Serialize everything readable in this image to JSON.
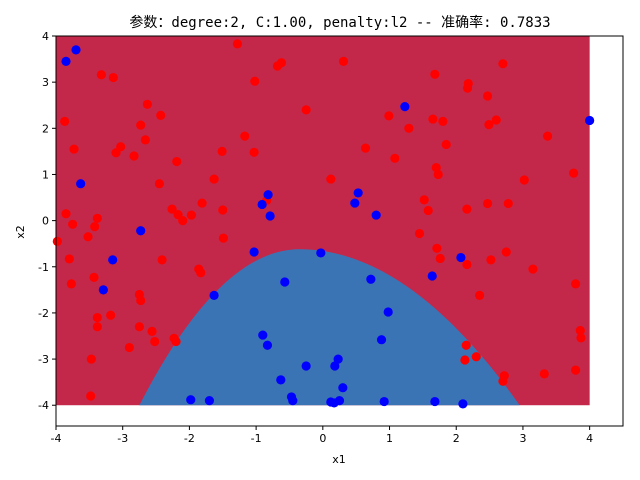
{
  "chart_data": {
    "type": "scatter",
    "title": "参数：degree:2, C:1.00, penalty:l2 -- 准确率: 0.7833",
    "xlabel": "x1",
    "ylabel": "x2",
    "xlim": [
      -4,
      4.5
    ],
    "ylim": [
      -4.45,
      4
    ],
    "xticks": [
      -4,
      -3,
      -2,
      -1,
      0,
      1,
      2,
      3,
      4
    ],
    "yticks": [
      -4,
      -3,
      -2,
      -1,
      0,
      1,
      2,
      3,
      4
    ],
    "grid": false,
    "colors": {
      "region_red": "#c3284a",
      "region_blue": "#3b74b4",
      "point_red": "#ff0000",
      "point_blue": "#0000ff"
    },
    "decision_region": {
      "x_range": [
        -4,
        4
      ],
      "y_range": [
        -4,
        4
      ],
      "boundary_peak": [
        -0.35,
        -0.62
      ],
      "boundary_ends": [
        [
          -2.75,
          -4
        ],
        [
          2.95,
          -4
        ]
      ]
    },
    "series": [
      {
        "color": "#ff0000",
        "points": [
          [
            -3.87,
            2.15
          ],
          [
            -3.73,
            1.55
          ],
          [
            -3.32,
            3.16
          ],
          [
            -3.14,
            3.1
          ],
          [
            -3.03,
            1.6
          ],
          [
            -3.1,
            1.47
          ],
          [
            -2.83,
            1.4
          ],
          [
            -2.73,
            2.07
          ],
          [
            -2.66,
            1.75
          ],
          [
            -2.63,
            2.52
          ],
          [
            -2.43,
            2.28
          ],
          [
            -2.26,
            0.25
          ],
          [
            -2.19,
            1.28
          ],
          [
            -2.17,
            0.13
          ],
          [
            -2.1,
            0.0
          ],
          [
            -1.97,
            0.12
          ],
          [
            -1.81,
            0.38
          ],
          [
            -1.63,
            0.9
          ],
          [
            -1.51,
            1.5
          ],
          [
            -1.5,
            0.23
          ],
          [
            -1.49,
            -0.38
          ],
          [
            -1.28,
            3.83
          ],
          [
            -1.17,
            1.83
          ],
          [
            -1.02,
            3.02
          ],
          [
            -1.03,
            1.48
          ],
          [
            -0.84,
            0.44
          ],
          [
            -0.68,
            3.35
          ],
          [
            -0.62,
            3.42
          ],
          [
            -0.25,
            2.4
          ],
          [
            0.31,
            3.45
          ],
          [
            0.12,
            0.9
          ],
          [
            0.64,
            1.57
          ],
          [
            0.99,
            2.27
          ],
          [
            1.08,
            1.35
          ],
          [
            1.29,
            2.0
          ],
          [
            1.45,
            -0.28
          ],
          [
            1.52,
            0.45
          ],
          [
            1.58,
            0.22
          ],
          [
            1.65,
            2.2
          ],
          [
            1.68,
            3.17
          ],
          [
            1.7,
            1.15
          ],
          [
            1.73,
            1.0
          ],
          [
            1.8,
            2.15
          ],
          [
            1.85,
            1.65
          ],
          [
            1.71,
            -0.6
          ],
          [
            1.76,
            -0.82
          ],
          [
            2.17,
            2.87
          ],
          [
            2.18,
            2.97
          ],
          [
            2.47,
            2.7
          ],
          [
            2.49,
            2.08
          ],
          [
            2.6,
            2.18
          ],
          [
            2.52,
            -0.85
          ],
          [
            2.47,
            0.37
          ],
          [
            2.16,
            0.25
          ],
          [
            2.16,
            -0.95
          ],
          [
            2.7,
            3.4
          ],
          [
            2.75,
            -0.68
          ],
          [
            2.78,
            0.37
          ],
          [
            3.02,
            0.88
          ],
          [
            3.15,
            -1.05
          ],
          [
            3.37,
            1.83
          ],
          [
            3.76,
            1.03
          ],
          [
            3.79,
            -1.37
          ],
          [
            3.86,
            -2.38
          ],
          [
            3.87,
            -2.54
          ],
          [
            3.79,
            -3.24
          ],
          [
            3.32,
            -3.32
          ],
          [
            2.72,
            -3.36
          ],
          [
            2.7,
            -3.48
          ],
          [
            2.35,
            -1.62
          ],
          [
            2.3,
            -2.95
          ],
          [
            2.15,
            -2.7
          ],
          [
            2.13,
            -3.02
          ],
          [
            -3.98,
            -0.45
          ],
          [
            -3.85,
            0.15
          ],
          [
            -3.75,
            -0.08
          ],
          [
            -3.8,
            -0.83
          ],
          [
            -3.77,
            -1.37
          ],
          [
            -3.52,
            -0.35
          ],
          [
            -3.42,
            -0.13
          ],
          [
            -3.38,
            0.05
          ],
          [
            -3.43,
            -1.23
          ],
          [
            -3.38,
            -2.1
          ],
          [
            -3.38,
            -2.3
          ],
          [
            -3.18,
            -2.05
          ],
          [
            -3.47,
            -3.0
          ],
          [
            -3.48,
            -3.8
          ],
          [
            -2.9,
            -2.75
          ],
          [
            -2.75,
            -1.6
          ],
          [
            -2.73,
            -1.73
          ],
          [
            -2.75,
            -2.3
          ],
          [
            -2.56,
            -2.4
          ],
          [
            -2.52,
            -2.62
          ],
          [
            -2.45,
            0.8
          ],
          [
            -2.41,
            -0.85
          ],
          [
            -2.23,
            -2.55
          ],
          [
            -2.2,
            -2.62
          ],
          [
            -1.86,
            -1.05
          ],
          [
            -1.83,
            -1.13
          ]
        ]
      },
      {
        "color": "#0000ff",
        "points": [
          [
            -3.7,
            3.7
          ],
          [
            -3.85,
            3.45
          ],
          [
            -3.63,
            0.8
          ],
          [
            -3.29,
            -1.5
          ],
          [
            -3.15,
            -0.85
          ],
          [
            -2.73,
            -0.22
          ],
          [
            -1.98,
            -3.88
          ],
          [
            -1.7,
            -3.9
          ],
          [
            -1.63,
            -1.62
          ],
          [
            -1.03,
            -0.68
          ],
          [
            -0.91,
            0.35
          ],
          [
            -0.82,
            0.56
          ],
          [
            -0.79,
            0.1
          ],
          [
            -0.9,
            -2.48
          ],
          [
            -0.83,
            -2.7
          ],
          [
            -0.63,
            -3.45
          ],
          [
            -0.57,
            -1.33
          ],
          [
            -0.47,
            -3.82
          ],
          [
            -0.45,
            -3.9
          ],
          [
            -0.25,
            -3.15
          ],
          [
            -0.03,
            -0.7
          ],
          [
            0.12,
            -3.93
          ],
          [
            0.17,
            -3.95
          ],
          [
            0.18,
            -3.15
          ],
          [
            0.23,
            -3.0
          ],
          [
            0.25,
            -3.9
          ],
          [
            0.3,
            -3.62
          ],
          [
            0.48,
            0.38
          ],
          [
            0.53,
            0.6
          ],
          [
            0.72,
            -1.27
          ],
          [
            0.8,
            0.12
          ],
          [
            0.88,
            -2.58
          ],
          [
            0.92,
            -3.92
          ],
          [
            0.98,
            -1.98
          ],
          [
            1.23,
            2.47
          ],
          [
            1.64,
            -1.2
          ],
          [
            1.68,
            -3.92
          ],
          [
            2.07,
            -0.8
          ],
          [
            2.1,
            -3.97
          ],
          [
            4.0,
            2.17
          ]
        ]
      }
    ]
  }
}
